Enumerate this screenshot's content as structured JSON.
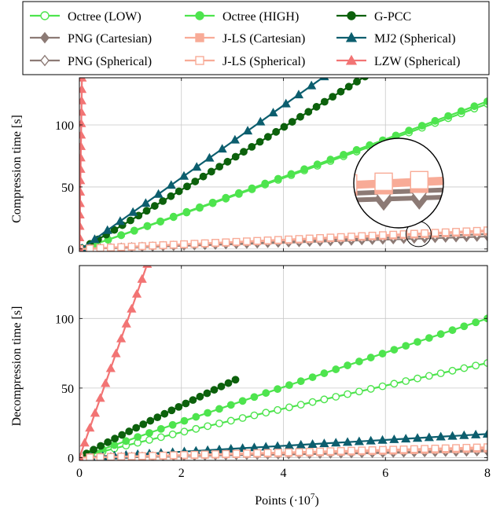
{
  "chart_data": [
    {
      "type": "line",
      "ylabel": "Compression time [s]",
      "xlabel": "",
      "xlim": [
        0,
        8
      ],
      "ylim": [
        -2,
        138
      ],
      "xticks": [
        0,
        2,
        4,
        6,
        8
      ],
      "xtick_labels": [
        "",
        "",
        "",
        "",
        ""
      ],
      "yticks": [
        0,
        50,
        100
      ],
      "ytick_labels": [
        "0",
        "50",
        "100"
      ],
      "grid": true,
      "legend_position": "top (above panels, 3 columns)",
      "legend": [
        {
          "name": "Octree (LOW)",
          "color": "#4ee44e",
          "marker": "circle-open"
        },
        {
          "name": "Octree (HIGH)",
          "color": "#4ee44e",
          "marker": "circle"
        },
        {
          "name": "G-PCC",
          "color": "#0c610c",
          "marker": "circle"
        },
        {
          "name": "PNG (Cartesian)",
          "color": "#8c7a75",
          "marker": "diamond"
        },
        {
          "name": "J-LS (Cartesian)",
          "color": "#f8ab97",
          "marker": "square"
        },
        {
          "name": "MJ2 (Spherical)",
          "color": "#0c5e6e",
          "marker": "triangle"
        },
        {
          "name": "PNG (Spherical)",
          "color": "#8c7a75",
          "marker": "diamond-open"
        },
        {
          "name": "J-LS (Spherical)",
          "color": "#f8ab97",
          "marker": "square-open"
        },
        {
          "name": "LZW (Spherical)",
          "color": "#f27474",
          "marker": "triangle"
        }
      ],
      "series": [
        {
          "name": "Octree (LOW)",
          "color": "#4ee44e",
          "marker": "circle-open",
          "x0": 0.05,
          "x1": 8.0,
          "n": 32,
          "y0": 0.5,
          "y1": 117,
          "pow": 1.03
        },
        {
          "name": "Octree (HIGH)",
          "color": "#4ee44e",
          "marker": "circle",
          "x0": 0.05,
          "x1": 8.0,
          "n": 32,
          "y0": 0.5,
          "y1": 119,
          "pow": 1.03
        },
        {
          "name": "G-PCC",
          "color": "#0c610c",
          "marker": "circle",
          "x0": 0.05,
          "x1": 5.6,
          "n": 36,
          "y0": 0.5,
          "y1": 139,
          "pow": 1.03
        },
        {
          "name": "MJ2 (Spherical)",
          "color": "#0c5e6e",
          "marker": "triangle",
          "x0": 0.05,
          "x1": 4.8,
          "n": 20,
          "y0": 0.5,
          "y1": 139,
          "pow": 1.0
        },
        {
          "name": "PNG (Cartesian)",
          "color": "#8c7a75",
          "marker": "diamond",
          "x0": 0.0,
          "x1": 8.0,
          "n": 40,
          "y0": 0.0,
          "y1": 10,
          "pow": 1.0
        },
        {
          "name": "PNG (Spherical)",
          "color": "#8c7a75",
          "marker": "diamond-open",
          "x0": 0.0,
          "x1": 8.0,
          "n": 40,
          "y0": 0.0,
          "y1": 12,
          "pow": 1.0
        },
        {
          "name": "J-LS (Cartesian)",
          "color": "#f8ab97",
          "marker": "square",
          "x0": 0.0,
          "x1": 8.0,
          "n": 40,
          "y0": 0.0,
          "y1": 14,
          "pow": 1.0
        },
        {
          "name": "J-LS (Spherical)",
          "color": "#f8ab97",
          "marker": "square-open",
          "x0": 0.0,
          "x1": 8.0,
          "n": 40,
          "y0": 0.0,
          "y1": 15,
          "pow": 1.0
        },
        {
          "name": "LZW (Spherical)",
          "color": "#f27474",
          "marker": "triangle",
          "x0": 0.0,
          "x1": 0.05,
          "n": 16,
          "y0": 0.0,
          "y1": 138,
          "pow": 1.0
        }
      ]
    },
    {
      "type": "line",
      "ylabel": "Decompression time [s]",
      "xlabel": "Points (·10",
      "xlabel_exp": "7",
      "xlabel_end": ")",
      "xlim": [
        0,
        8
      ],
      "ylim": [
        -2,
        138
      ],
      "xticks": [
        0,
        2,
        4,
        6,
        8
      ],
      "xtick_labels": [
        "0",
        "2",
        "4",
        "6",
        "8"
      ],
      "yticks": [
        0,
        50,
        100
      ],
      "ytick_labels": [
        "0",
        "50",
        "100"
      ],
      "grid": true,
      "series": [
        {
          "name": "Octree (LOW)",
          "color": "#4ee44e",
          "marker": "circle-open",
          "x0": 0.0,
          "x1": 8.0,
          "n": 36,
          "y0": 0.0,
          "y1": 68,
          "pow": 0.95
        },
        {
          "name": "Octree (HIGH)",
          "color": "#4ee44e",
          "marker": "circle",
          "x0": 0.0,
          "x1": 8.0,
          "n": 36,
          "y0": 0.0,
          "y1": 100,
          "pow": 0.98
        },
        {
          "name": "G-PCC",
          "color": "#0c610c",
          "marker": "circle",
          "x0": 0.0,
          "x1": 3.06,
          "n": 23,
          "y0": 0.0,
          "y1": 56,
          "pow": 0.95
        },
        {
          "name": "MJ2 (Spherical)",
          "color": "#0c5e6e",
          "marker": "triangle",
          "x0": 0.0,
          "x1": 8.0,
          "n": 36,
          "y0": 0.0,
          "y1": 17,
          "pow": 1.0
        },
        {
          "name": "PNG (Cartesian)",
          "color": "#8c7a75",
          "marker": "diamond",
          "x0": 0.0,
          "x1": 8.0,
          "n": 40,
          "y0": 0.0,
          "y1": 4.5,
          "pow": 1.0
        },
        {
          "name": "PNG (Spherical)",
          "color": "#8c7a75",
          "marker": "diamond-open",
          "x0": 0.0,
          "x1": 8.0,
          "n": 40,
          "y0": 0.0,
          "y1": 5.5,
          "pow": 1.0
        },
        {
          "name": "J-LS (Cartesian)",
          "color": "#f8ab97",
          "marker": "square",
          "x0": 0.0,
          "x1": 8.0,
          "n": 40,
          "y0": 0.0,
          "y1": 6.5,
          "pow": 1.0
        },
        {
          "name": "J-LS (Spherical)",
          "color": "#f8ab97",
          "marker": "square-open",
          "x0": 0.0,
          "x1": 8.0,
          "n": 40,
          "y0": 0.0,
          "y1": 7.5,
          "pow": 1.0
        },
        {
          "name": "LZW (Spherical)",
          "color": "#f27474",
          "marker": "triangle",
          "x0": 0.0,
          "x1": 1.33,
          "n": 14,
          "y0": 0.0,
          "y1": 139,
          "pow": 1.0
        }
      ]
    }
  ]
}
